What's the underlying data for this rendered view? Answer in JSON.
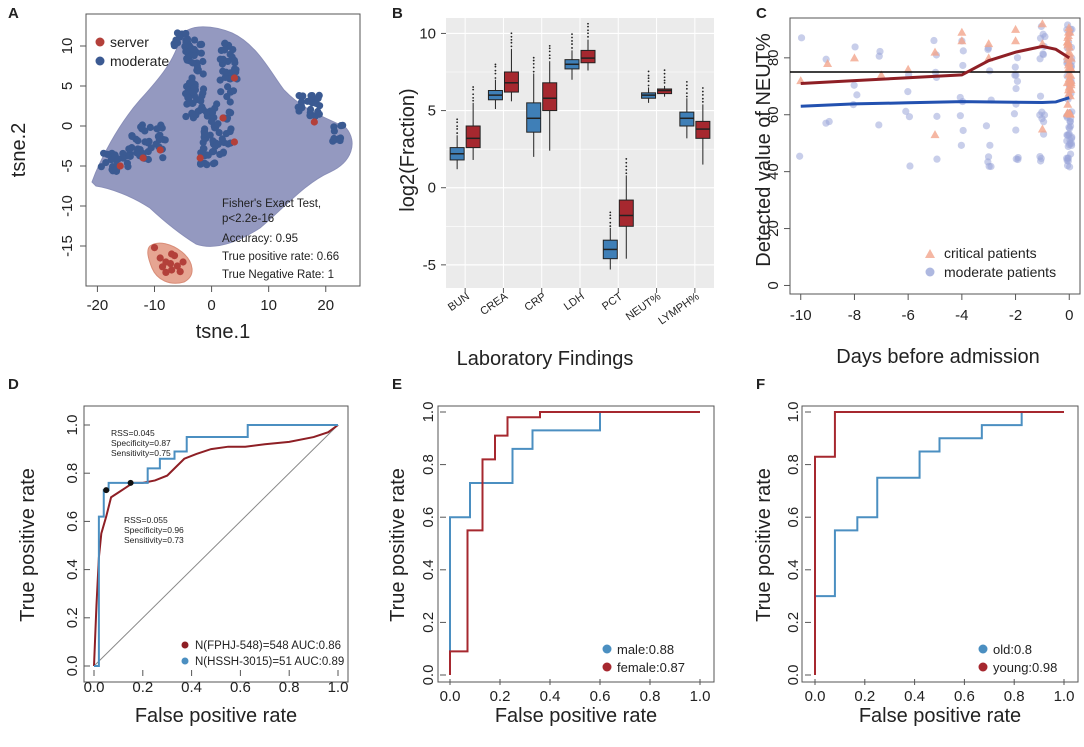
{
  "chart_data": [
    {
      "id": "A",
      "panel_label": "A",
      "type": "scatter",
      "xlabel": "tsne.1",
      "ylabel": "tsne.2",
      "xlim": [
        -22,
        26
      ],
      "ylim": [
        -20,
        14
      ],
      "xticks": [
        -20,
        -10,
        0,
        10,
        20
      ],
      "yticks": [
        10,
        5,
        0,
        -5,
        -10,
        -15
      ],
      "legend": [
        {
          "name": "server",
          "color": "#b3403a"
        },
        {
          "name": "moderate",
          "color": "#3b5a92"
        }
      ],
      "annotations": [
        "Fisher's Exact Test,",
        "p<2.2e-16",
        "Accuracy: 0.95",
        "True positive rate: 0.66",
        "True Negative Rate: 1"
      ],
      "colors": {
        "hull_moderate": "#9499c0",
        "hull_server": "#e6a592",
        "server": "#b3403a",
        "moderate": "#3b5a92"
      }
    },
    {
      "id": "B",
      "panel_label": "B",
      "type": "box",
      "xlabel": "Laboratory Findings",
      "ylabel": "log2(Fraction)",
      "ylim": [
        -6.5,
        11
      ],
      "yticks": [
        10,
        5,
        0,
        -5
      ],
      "categories": [
        "BUN",
        "CREA",
        "CRP",
        "LDH",
        "PCT",
        "NEUT%",
        "LYMPH%"
      ],
      "series": [
        {
          "name": "moderate",
          "color": "#3f7fb7",
          "boxes": [
            [
              1.2,
              1.8,
              2.2,
              2.6,
              3.4
            ],
            [
              5.1,
              5.7,
              6.0,
              6.3,
              7.0
            ],
            [
              2.0,
              3.6,
              4.5,
              5.5,
              7.4
            ],
            [
              7.0,
              7.7,
              8.0,
              8.3,
              8.9
            ],
            [
              -5.3,
              -4.6,
              -4.0,
              -3.4,
              -2.6
            ],
            [
              5.5,
              5.8,
              6.0,
              6.15,
              6.5
            ],
            [
              3.2,
              4.0,
              4.5,
              4.9,
              5.8
            ]
          ]
        },
        {
          "name": "critical",
          "color": "#a6282f",
          "boxes": [
            [
              1.8,
              2.6,
              3.2,
              4.0,
              5.5
            ],
            [
              5.6,
              6.2,
              6.8,
              7.5,
              9.0
            ],
            [
              2.4,
              5.0,
              5.8,
              6.8,
              8.2
            ],
            [
              7.6,
              8.1,
              8.4,
              8.9,
              9.6
            ],
            [
              -4.6,
              -2.5,
              -1.8,
              -0.8,
              0.8
            ],
            [
              5.9,
              6.1,
              6.3,
              6.4,
              6.6
            ],
            [
              1.5,
              3.2,
              3.8,
              4.3,
              5.4
            ]
          ]
        }
      ]
    },
    {
      "id": "C",
      "panel_label": "C",
      "type": "scatter",
      "xlabel": "Days before admission",
      "ylabel": "Detected value of NEUT%",
      "xlim": [
        -10.4,
        0.4
      ],
      "ylim": [
        -3,
        94
      ],
      "xticks": [
        -10,
        -8,
        -6,
        -4,
        -2,
        0
      ],
      "yticks": [
        0,
        20,
        40,
        60,
        80
      ],
      "hline": 75,
      "legend": [
        {
          "name": "critical patients",
          "color": "#f2a58c"
        },
        {
          "name": "moderate patients",
          "color": "#9aa6d8"
        }
      ],
      "critical_trend": {
        "x": [
          -10,
          -8,
          -6,
          -4,
          -3,
          -2,
          -1,
          -0.5,
          0
        ],
        "y": [
          71,
          72,
          73,
          74,
          79,
          82,
          84,
          83,
          80
        ]
      },
      "moderate_trend": {
        "x": [
          -10,
          -8,
          -6,
          -4,
          -2,
          -1,
          -0.5,
          0
        ],
        "y": [
          63,
          63.8,
          64.2,
          64.6,
          64.4,
          64.3,
          64.5,
          66
        ]
      },
      "colors": {
        "critical_line": "#8e1f25",
        "moderate_line": "#2351b0"
      }
    },
    {
      "id": "D",
      "panel_label": "D",
      "type": "line",
      "xlabel": "False positive rate",
      "ylabel": "True positive rate",
      "xlim": [
        0,
        1
      ],
      "ylim": [
        0,
        1
      ],
      "ticks": [
        0.0,
        0.2,
        0.4,
        0.6,
        0.8,
        1.0
      ],
      "series": [
        {
          "name": "N(FPHJ-548)=548 AUC:0.86",
          "color": "#8e1f25",
          "x": [
            0,
            0.01,
            0.02,
            0.03,
            0.05,
            0.07,
            0.1,
            0.13,
            0.16,
            0.2,
            0.25,
            0.3,
            0.33,
            0.37,
            0.42,
            0.48,
            0.55,
            0.62,
            0.7,
            0.8,
            0.9,
            0.96,
            1.0
          ],
          "y": [
            0,
            0.25,
            0.45,
            0.55,
            0.62,
            0.7,
            0.72,
            0.74,
            0.76,
            0.76,
            0.77,
            0.79,
            0.82,
            0.86,
            0.88,
            0.9,
            0.91,
            0.91,
            0.92,
            0.93,
            0.95,
            0.97,
            1.0
          ]
        },
        {
          "name": "N(HSSH-3015)=51 AUC:0.89",
          "color": "#4b8fc1",
          "x": [
            0,
            0.02,
            0.02,
            0.04,
            0.04,
            0.06,
            0.06,
            0.22,
            0.22,
            0.27,
            0.27,
            0.33,
            0.33,
            0.38,
            0.38,
            0.63,
            0.63,
            1.0
          ],
          "y": [
            0,
            0.0,
            0.62,
            0.62,
            0.73,
            0.73,
            0.76,
            0.76,
            0.82,
            0.82,
            0.86,
            0.86,
            0.89,
            0.89,
            0.95,
            0.95,
            1.0,
            1.0
          ]
        }
      ],
      "cutoff_point_red": [
        0.05,
        0.73
      ],
      "cutoff_point_blue": [
        0.15,
        0.76
      ],
      "annotation_red": [
        "RSS=0.045",
        "Specificity=0.87",
        "Sensitivity=0.75"
      ],
      "annotation_blue": [
        "RSS=0.055",
        "Specificity=0.96",
        "Sensitivity=0.73"
      ]
    },
    {
      "id": "E",
      "panel_label": "E",
      "type": "line",
      "xlabel": "False positive rate",
      "ylabel": "True positive rate",
      "xlim": [
        0,
        1
      ],
      "ylim": [
        0,
        1
      ],
      "ticks": [
        0.0,
        0.2,
        0.4,
        0.6,
        0.8,
        1.0
      ],
      "series": [
        {
          "name": "male:0.88",
          "color": "#4b8fc1",
          "x": [
            0,
            0,
            0.08,
            0.08,
            0.25,
            0.25,
            0.33,
            0.33,
            0.6,
            0.6,
            1.0
          ],
          "y": [
            0,
            0.6,
            0.6,
            0.73,
            0.73,
            0.86,
            0.86,
            0.93,
            0.93,
            1.0,
            1.0
          ]
        },
        {
          "name": "female:0.87",
          "color": "#a6282f",
          "x": [
            0,
            0,
            0.07,
            0.07,
            0.13,
            0.13,
            0.18,
            0.18,
            0.23,
            0.23,
            0.36,
            0.36,
            1.0
          ],
          "y": [
            0,
            0.09,
            0.09,
            0.55,
            0.55,
            0.82,
            0.82,
            0.91,
            0.91,
            0.98,
            0.98,
            1.0,
            1.0
          ]
        }
      ]
    },
    {
      "id": "F",
      "panel_label": "F",
      "type": "line",
      "xlabel": "False positive rate",
      "ylabel": "True positive rate",
      "xlim": [
        0,
        1
      ],
      "ylim": [
        0,
        1
      ],
      "ticks": [
        0.0,
        0.2,
        0.4,
        0.6,
        0.8,
        1.0
      ],
      "series": [
        {
          "name": "old:0.8",
          "color": "#4b8fc1",
          "x": [
            0,
            0,
            0.08,
            0.08,
            0.17,
            0.17,
            0.25,
            0.25,
            0.42,
            0.42,
            0.5,
            0.5,
            0.67,
            0.67,
            0.83,
            0.83,
            1.0
          ],
          "y": [
            0,
            0.3,
            0.3,
            0.55,
            0.55,
            0.6,
            0.6,
            0.75,
            0.75,
            0.85,
            0.85,
            0.9,
            0.9,
            0.95,
            0.95,
            1.0,
            1.0
          ]
        },
        {
          "name": "young:0.98",
          "color": "#a6282f",
          "x": [
            0,
            0,
            0.08,
            0.08,
            1.0
          ],
          "y": [
            0,
            0.83,
            0.83,
            1.0,
            1.0
          ]
        }
      ]
    }
  ]
}
